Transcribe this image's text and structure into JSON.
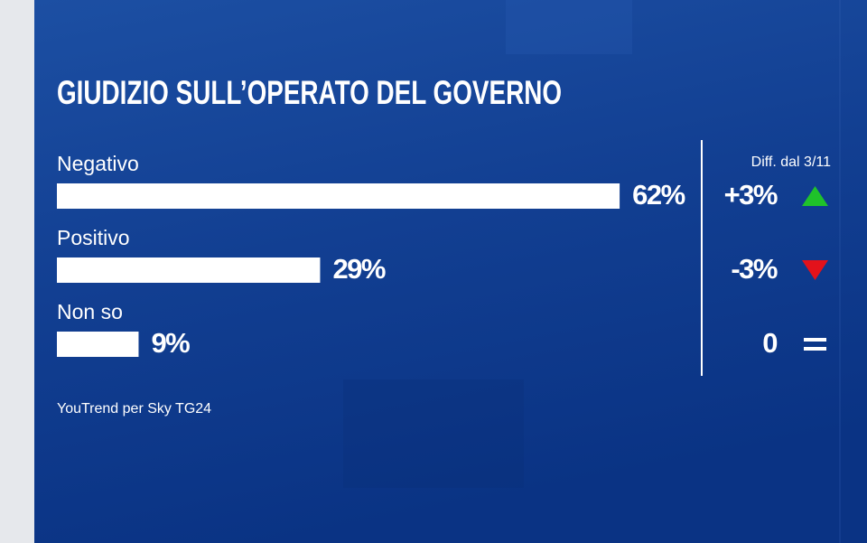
{
  "chart_data": {
    "type": "bar",
    "orientation": "horizontal",
    "title": "GIUDIZIO SULL’OPERATO DEL GOVERNO",
    "categories": [
      "Negativo",
      "Positivo",
      "Non so"
    ],
    "values": [
      62,
      29,
      9
    ],
    "value_labels": [
      "62%",
      "29%",
      "9%"
    ],
    "color": "#ffffff",
    "diff": {
      "title": "Diff. dal 3/11",
      "values": [
        3,
        -3,
        0
      ],
      "value_labels": [
        "+3%",
        "-3%",
        "0"
      ],
      "up_color": "#1fc22a",
      "down_color": "#e3121b",
      "flat_color": "#ffffff"
    },
    "source": "YouTrend per Sky TG24"
  }
}
